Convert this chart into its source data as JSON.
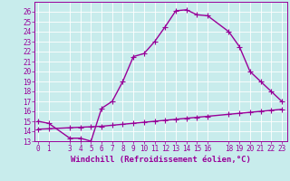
{
  "title": "",
  "xlabel": "Windchill (Refroidissement éolien,°C)",
  "background_color": "#c8ecec",
  "line_color": "#990099",
  "grid_color": "#ffffff",
  "x_main": [
    0,
    1,
    3,
    4,
    5,
    6,
    7,
    8,
    9,
    10,
    11,
    12,
    13,
    14,
    15,
    16,
    18,
    19,
    20,
    21,
    22,
    23
  ],
  "y_main": [
    15.0,
    14.8,
    13.3,
    13.3,
    13.0,
    16.3,
    17.0,
    19.0,
    21.5,
    21.8,
    23.0,
    24.5,
    26.1,
    26.2,
    25.7,
    25.6,
    24.0,
    22.5,
    20.0,
    19.0,
    18.0,
    17.0
  ],
  "x_ref": [
    0,
    1,
    3,
    4,
    5,
    6,
    7,
    8,
    9,
    10,
    11,
    12,
    13,
    14,
    15,
    16,
    18,
    19,
    20,
    21,
    22,
    23
  ],
  "y_ref": [
    14.2,
    14.25,
    14.35,
    14.4,
    14.45,
    14.5,
    14.6,
    14.7,
    14.8,
    14.9,
    15.0,
    15.1,
    15.2,
    15.3,
    15.4,
    15.5,
    15.7,
    15.8,
    15.9,
    16.0,
    16.1,
    16.2
  ],
  "xlim": [
    -0.3,
    23.5
  ],
  "ylim": [
    13,
    27
  ],
  "xticks": [
    0,
    1,
    3,
    4,
    5,
    6,
    7,
    8,
    9,
    10,
    11,
    12,
    13,
    14,
    15,
    16,
    18,
    19,
    20,
    21,
    22,
    23
  ],
  "yticks": [
    13,
    14,
    15,
    16,
    17,
    18,
    19,
    20,
    21,
    22,
    23,
    24,
    25,
    26
  ],
  "tick_fontsize": 5.5,
  "xlabel_fontsize": 6.5,
  "marker_size": 4,
  "line_width": 1.0
}
